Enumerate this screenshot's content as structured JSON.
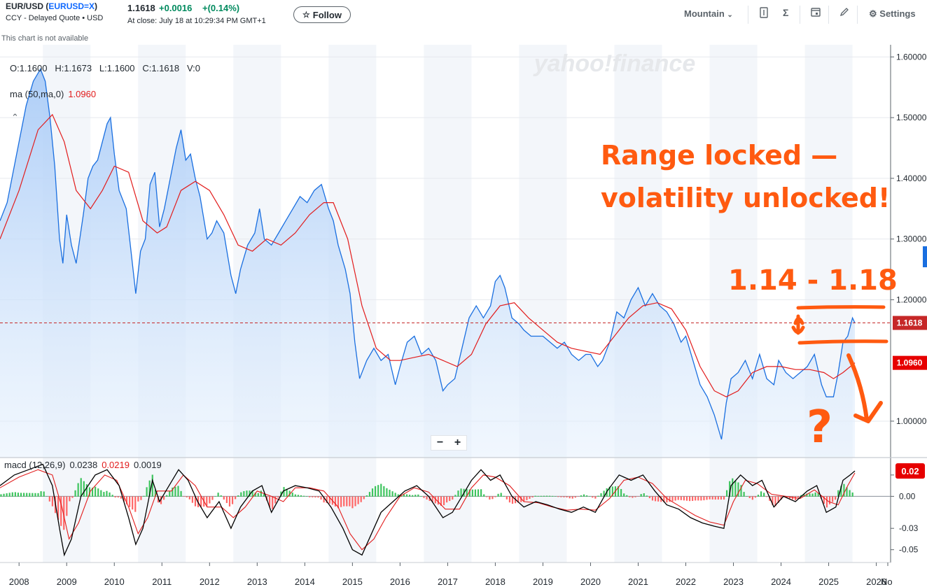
{
  "header": {
    "symbol_pair": "EUR/USD",
    "ticker": "EURUSD=X",
    "subtitle": "CCY - Delayed Quote • USD",
    "price": "1.1618",
    "change": "+0.0016",
    "change_pct": "+(0.14%)",
    "close_time": "At close: July 18 at 10:29:34 PM GMT+1",
    "follow_label": "Follow",
    "chart_type_label": "Mountain",
    "settings_label": "Settings",
    "not_available": "This chart is not available"
  },
  "icons": [
    "star-icon",
    "chevron-down-icon",
    "indicator-icon",
    "sigma-icon",
    "calendar-icon",
    "pencil-icon",
    "gear-icon"
  ],
  "colors": {
    "price_line": "#1a6fe0",
    "ma_line": "#e21c1c",
    "annotation": "#ff5a10",
    "macd_signal": "#e21c1c",
    "macd_line": "#000000",
    "hist_pos": "#3ec45e",
    "hist_neg": "#ff6666"
  },
  "chart_data": {
    "type": "area",
    "ohlc_legend": "O:1.1600   H:1.1673   L:1.1600   C:1.1618   V:0",
    "ma_label": "ma (50,ma,0)",
    "ma_value": "1.0960",
    "watermark": "yahoo!finance",
    "x_ticks": [
      "2008",
      "2009",
      "2010",
      "2011",
      "2012",
      "2013",
      "2014",
      "2015",
      "2016",
      "2017",
      "2018",
      "2019",
      "2020",
      "2021",
      "2022",
      "2023",
      "2024",
      "2025",
      "2026",
      "No"
    ],
    "y_ticks": [
      1.6,
      1.5,
      1.4,
      1.3,
      1.2,
      1.0
    ],
    "y_tick_labels": [
      "1.60000",
      "1.50000",
      "1.40000",
      "1.30000",
      "1.20000",
      "1.00000"
    ],
    "ylim": [
      0.94,
      1.62
    ],
    "x_range": [
      2007.6,
      2026.3
    ],
    "last_price_label": "1.1618",
    "last_ma_label": "1.0960",
    "price_series": [
      [
        2007.6,
        1.33
      ],
      [
        2007.75,
        1.36
      ],
      [
        2007.9,
        1.42
      ],
      [
        2008.0,
        1.46
      ],
      [
        2008.15,
        1.52
      ],
      [
        2008.3,
        1.56
      ],
      [
        2008.45,
        1.58
      ],
      [
        2008.55,
        1.56
      ],
      [
        2008.65,
        1.5
      ],
      [
        2008.75,
        1.42
      ],
      [
        2008.85,
        1.3
      ],
      [
        2008.92,
        1.26
      ],
      [
        2009.0,
        1.34
      ],
      [
        2009.1,
        1.29
      ],
      [
        2009.2,
        1.26
      ],
      [
        2009.35,
        1.34
      ],
      [
        2009.45,
        1.4
      ],
      [
        2009.55,
        1.42
      ],
      [
        2009.65,
        1.43
      ],
      [
        2009.75,
        1.46
      ],
      [
        2009.85,
        1.49
      ],
      [
        2009.92,
        1.5
      ],
      [
        2010.0,
        1.44
      ],
      [
        2010.1,
        1.38
      ],
      [
        2010.25,
        1.35
      ],
      [
        2010.35,
        1.28
      ],
      [
        2010.45,
        1.21
      ],
      [
        2010.55,
        1.28
      ],
      [
        2010.65,
        1.3
      ],
      [
        2010.75,
        1.39
      ],
      [
        2010.85,
        1.41
      ],
      [
        2010.95,
        1.32
      ],
      [
        2011.05,
        1.35
      ],
      [
        2011.2,
        1.41
      ],
      [
        2011.3,
        1.45
      ],
      [
        2011.4,
        1.48
      ],
      [
        2011.5,
        1.43
      ],
      [
        2011.6,
        1.44
      ],
      [
        2011.7,
        1.4
      ],
      [
        2011.8,
        1.37
      ],
      [
        2011.95,
        1.3
      ],
      [
        2012.05,
        1.31
      ],
      [
        2012.15,
        1.33
      ],
      [
        2012.3,
        1.31
      ],
      [
        2012.45,
        1.24
      ],
      [
        2012.55,
        1.21
      ],
      [
        2012.65,
        1.25
      ],
      [
        2012.8,
        1.29
      ],
      [
        2012.95,
        1.31
      ],
      [
        2013.05,
        1.35
      ],
      [
        2013.15,
        1.3
      ],
      [
        2013.3,
        1.29
      ],
      [
        2013.45,
        1.31
      ],
      [
        2013.6,
        1.33
      ],
      [
        2013.75,
        1.35
      ],
      [
        2013.9,
        1.37
      ],
      [
        2014.05,
        1.36
      ],
      [
        2014.2,
        1.38
      ],
      [
        2014.35,
        1.39
      ],
      [
        2014.5,
        1.35
      ],
      [
        2014.6,
        1.33
      ],
      [
        2014.7,
        1.29
      ],
      [
        2014.85,
        1.25
      ],
      [
        2014.95,
        1.21
      ],
      [
        2015.05,
        1.13
      ],
      [
        2015.15,
        1.07
      ],
      [
        2015.3,
        1.1
      ],
      [
        2015.45,
        1.12
      ],
      [
        2015.6,
        1.1
      ],
      [
        2015.75,
        1.11
      ],
      [
        2015.9,
        1.06
      ],
      [
        2016.0,
        1.09
      ],
      [
        2016.15,
        1.13
      ],
      [
        2016.3,
        1.14
      ],
      [
        2016.45,
        1.11
      ],
      [
        2016.6,
        1.12
      ],
      [
        2016.75,
        1.1
      ],
      [
        2016.9,
        1.05
      ],
      [
        2017.0,
        1.06
      ],
      [
        2017.15,
        1.07
      ],
      [
        2017.3,
        1.12
      ],
      [
        2017.45,
        1.17
      ],
      [
        2017.6,
        1.19
      ],
      [
        2017.75,
        1.17
      ],
      [
        2017.9,
        1.19
      ],
      [
        2018.0,
        1.23
      ],
      [
        2018.1,
        1.24
      ],
      [
        2018.2,
        1.22
      ],
      [
        2018.35,
        1.17
      ],
      [
        2018.5,
        1.16
      ],
      [
        2018.6,
        1.15
      ],
      [
        2018.75,
        1.14
      ],
      [
        2018.9,
        1.14
      ],
      [
        2019.0,
        1.14
      ],
      [
        2019.15,
        1.13
      ],
      [
        2019.3,
        1.12
      ],
      [
        2019.45,
        1.13
      ],
      [
        2019.6,
        1.11
      ],
      [
        2019.75,
        1.1
      ],
      [
        2019.9,
        1.11
      ],
      [
        2020.0,
        1.11
      ],
      [
        2020.15,
        1.09
      ],
      [
        2020.25,
        1.1
      ],
      [
        2020.4,
        1.13
      ],
      [
        2020.55,
        1.18
      ],
      [
        2020.7,
        1.17
      ],
      [
        2020.85,
        1.2
      ],
      [
        2021.0,
        1.22
      ],
      [
        2021.15,
        1.19
      ],
      [
        2021.3,
        1.21
      ],
      [
        2021.45,
        1.19
      ],
      [
        2021.6,
        1.18
      ],
      [
        2021.75,
        1.16
      ],
      [
        2021.9,
        1.13
      ],
      [
        2022.0,
        1.14
      ],
      [
        2022.15,
        1.1
      ],
      [
        2022.3,
        1.06
      ],
      [
        2022.45,
        1.04
      ],
      [
        2022.6,
        1.01
      ],
      [
        2022.75,
        0.97
      ],
      [
        2022.85,
        1.03
      ],
      [
        2022.95,
        1.07
      ],
      [
        2023.1,
        1.08
      ],
      [
        2023.25,
        1.1
      ],
      [
        2023.4,
        1.07
      ],
      [
        2023.55,
        1.11
      ],
      [
        2023.7,
        1.07
      ],
      [
        2023.85,
        1.06
      ],
      [
        2023.95,
        1.1
      ],
      [
        2024.1,
        1.08
      ],
      [
        2024.25,
        1.07
      ],
      [
        2024.4,
        1.08
      ],
      [
        2024.55,
        1.09
      ],
      [
        2024.7,
        1.11
      ],
      [
        2024.85,
        1.06
      ],
      [
        2024.95,
        1.04
      ],
      [
        2025.1,
        1.04
      ],
      [
        2025.2,
        1.08
      ],
      [
        2025.3,
        1.13
      ],
      [
        2025.4,
        1.14
      ],
      [
        2025.5,
        1.17
      ],
      [
        2025.55,
        1.1618
      ]
    ],
    "ma_series": [
      [
        2007.6,
        1.3
      ],
      [
        2008.0,
        1.38
      ],
      [
        2008.4,
        1.48
      ],
      [
        2008.7,
        1.505
      ],
      [
        2008.95,
        1.46
      ],
      [
        2009.2,
        1.38
      ],
      [
        2009.5,
        1.35
      ],
      [
        2009.75,
        1.38
      ],
      [
        2010.0,
        1.42
      ],
      [
        2010.3,
        1.41
      ],
      [
        2010.6,
        1.33
      ],
      [
        2010.9,
        1.31
      ],
      [
        2011.1,
        1.32
      ],
      [
        2011.4,
        1.38
      ],
      [
        2011.7,
        1.395
      ],
      [
        2012.0,
        1.38
      ],
      [
        2012.3,
        1.34
      ],
      [
        2012.6,
        1.29
      ],
      [
        2012.9,
        1.28
      ],
      [
        2013.2,
        1.3
      ],
      [
        2013.5,
        1.29
      ],
      [
        2013.8,
        1.31
      ],
      [
        2014.1,
        1.34
      ],
      [
        2014.4,
        1.36
      ],
      [
        2014.6,
        1.36
      ],
      [
        2014.9,
        1.3
      ],
      [
        2015.2,
        1.19
      ],
      [
        2015.5,
        1.12
      ],
      [
        2015.8,
        1.1
      ],
      [
        2016.0,
        1.1
      ],
      [
        2016.3,
        1.105
      ],
      [
        2016.6,
        1.11
      ],
      [
        2016.9,
        1.1
      ],
      [
        2017.2,
        1.09
      ],
      [
        2017.5,
        1.11
      ],
      [
        2017.8,
        1.16
      ],
      [
        2018.1,
        1.19
      ],
      [
        2018.4,
        1.195
      ],
      [
        2018.7,
        1.17
      ],
      [
        2019.0,
        1.15
      ],
      [
        2019.3,
        1.13
      ],
      [
        2019.6,
        1.12
      ],
      [
        2019.9,
        1.115
      ],
      [
        2020.2,
        1.11
      ],
      [
        2020.5,
        1.14
      ],
      [
        2020.8,
        1.17
      ],
      [
        2021.1,
        1.19
      ],
      [
        2021.4,
        1.195
      ],
      [
        2021.7,
        1.185
      ],
      [
        2022.0,
        1.15
      ],
      [
        2022.3,
        1.09
      ],
      [
        2022.6,
        1.05
      ],
      [
        2022.85,
        1.04
      ],
      [
        2023.1,
        1.05
      ],
      [
        2023.4,
        1.08
      ],
      [
        2023.7,
        1.09
      ],
      [
        2024.0,
        1.09
      ],
      [
        2024.3,
        1.085
      ],
      [
        2024.6,
        1.085
      ],
      [
        2024.9,
        1.08
      ],
      [
        2025.1,
        1.07
      ],
      [
        2025.3,
        1.08
      ],
      [
        2025.55,
        1.096
      ]
    ],
    "macd_legend": {
      "label": "macd (12,26,9)",
      "macd": "0.0238",
      "signal": "0.0219",
      "hist": "0.0019"
    },
    "macd_y_ticks": [
      0.02,
      0.0,
      -0.03,
      -0.05
    ],
    "macd_y_tick_labels": [
      "0.02",
      "0.00",
      "-0.03",
      "-0.05"
    ],
    "macd_ylim": [
      -0.062,
      0.035
    ],
    "macd_last_label": "0.02",
    "macd_series": [
      [
        2007.6,
        0.01
      ],
      [
        2007.9,
        0.02
      ],
      [
        2008.2,
        0.025
      ],
      [
        2008.5,
        0.03
      ],
      [
        2008.7,
        0.01
      ],
      [
        2008.85,
        -0.03
      ],
      [
        2008.95,
        -0.055
      ],
      [
        2009.1,
        -0.04
      ],
      [
        2009.3,
        0.0
      ],
      [
        2009.6,
        0.02
      ],
      [
        2009.85,
        0.025
      ],
      [
        2010.1,
        0.01
      ],
      [
        2010.3,
        -0.02
      ],
      [
        2010.45,
        -0.045
      ],
      [
        2010.6,
        -0.03
      ],
      [
        2010.8,
        0.015
      ],
      [
        2010.95,
        -0.005
      ],
      [
        2011.15,
        0.01
      ],
      [
        2011.35,
        0.025
      ],
      [
        2011.55,
        0.015
      ],
      [
        2011.75,
        -0.005
      ],
      [
        2011.95,
        -0.02
      ],
      [
        2012.2,
        -0.005
      ],
      [
        2012.45,
        -0.03
      ],
      [
        2012.65,
        -0.01
      ],
      [
        2012.9,
        0.005
      ],
      [
        2013.1,
        0.01
      ],
      [
        2013.3,
        -0.015
      ],
      [
        2013.55,
        0.005
      ],
      [
        2013.8,
        0.01
      ],
      [
        2014.05,
        0.008
      ],
      [
        2014.3,
        0.005
      ],
      [
        2014.55,
        -0.01
      ],
      [
        2014.8,
        -0.03
      ],
      [
        2015.0,
        -0.05
      ],
      [
        2015.2,
        -0.055
      ],
      [
        2015.4,
        -0.035
      ],
      [
        2015.6,
        -0.015
      ],
      [
        2015.85,
        -0.005
      ],
      [
        2016.1,
        0.005
      ],
      [
        2016.35,
        0.01
      ],
      [
        2016.6,
        0.0
      ],
      [
        2016.9,
        -0.02
      ],
      [
        2017.1,
        -0.015
      ],
      [
        2017.3,
        0.0
      ],
      [
        2017.5,
        0.015
      ],
      [
        2017.7,
        0.025
      ],
      [
        2017.9,
        0.015
      ],
      [
        2018.1,
        0.02
      ],
      [
        2018.35,
        0.0
      ],
      [
        2018.6,
        -0.01
      ],
      [
        2018.85,
        -0.005
      ],
      [
        2019.1,
        -0.008
      ],
      [
        2019.35,
        -0.012
      ],
      [
        2019.6,
        -0.015
      ],
      [
        2019.85,
        -0.01
      ],
      [
        2020.1,
        -0.015
      ],
      [
        2020.35,
        0.005
      ],
      [
        2020.6,
        0.02
      ],
      [
        2020.85,
        0.015
      ],
      [
        2021.1,
        0.02
      ],
      [
        2021.35,
        0.005
      ],
      [
        2021.6,
        -0.008
      ],
      [
        2021.85,
        -0.012
      ],
      [
        2022.1,
        -0.02
      ],
      [
        2022.35,
        -0.025
      ],
      [
        2022.6,
        -0.028
      ],
      [
        2022.8,
        -0.03
      ],
      [
        2022.95,
        0.01
      ],
      [
        2023.15,
        0.02
      ],
      [
        2023.4,
        0.01
      ],
      [
        2023.6,
        0.015
      ],
      [
        2023.85,
        -0.01
      ],
      [
        2024.05,
        0.0
      ],
      [
        2024.3,
        -0.005
      ],
      [
        2024.55,
        0.005
      ],
      [
        2024.75,
        0.01
      ],
      [
        2024.95,
        -0.015
      ],
      [
        2025.15,
        -0.01
      ],
      [
        2025.3,
        0.015
      ],
      [
        2025.45,
        0.02
      ],
      [
        2025.55,
        0.0238
      ]
    ],
    "signal_series": [
      [
        2007.6,
        0.008
      ],
      [
        2008.0,
        0.018
      ],
      [
        2008.4,
        0.025
      ],
      [
        2008.7,
        0.02
      ],
      [
        2008.9,
        -0.01
      ],
      [
        2009.05,
        -0.04
      ],
      [
        2009.25,
        -0.025
      ],
      [
        2009.5,
        0.005
      ],
      [
        2009.8,
        0.02
      ],
      [
        2010.05,
        0.015
      ],
      [
        2010.3,
        -0.01
      ],
      [
        2010.5,
        -0.035
      ],
      [
        2010.7,
        -0.02
      ],
      [
        2010.9,
        0.005
      ],
      [
        2011.2,
        0.005
      ],
      [
        2011.45,
        0.02
      ],
      [
        2011.7,
        0.01
      ],
      [
        2011.95,
        -0.01
      ],
      [
        2012.25,
        -0.01
      ],
      [
        2012.5,
        -0.02
      ],
      [
        2012.75,
        -0.01
      ],
      [
        2013.0,
        0.005
      ],
      [
        2013.3,
        0.0
      ],
      [
        2013.55,
        -0.005
      ],
      [
        2013.8,
        0.008
      ],
      [
        2014.1,
        0.008
      ],
      [
        2014.4,
        0.005
      ],
      [
        2014.7,
        -0.01
      ],
      [
        2014.95,
        -0.035
      ],
      [
        2015.2,
        -0.05
      ],
      [
        2015.45,
        -0.04
      ],
      [
        2015.7,
        -0.02
      ],
      [
        2016.0,
        0.0
      ],
      [
        2016.3,
        0.008
      ],
      [
        2016.6,
        0.004
      ],
      [
        2016.95,
        -0.012
      ],
      [
        2017.25,
        -0.012
      ],
      [
        2017.5,
        0.008
      ],
      [
        2017.75,
        0.02
      ],
      [
        2018.0,
        0.018
      ],
      [
        2018.3,
        0.01
      ],
      [
        2018.6,
        -0.005
      ],
      [
        2018.9,
        -0.006
      ],
      [
        2019.2,
        -0.01
      ],
      [
        2019.5,
        -0.013
      ],
      [
        2019.8,
        -0.012
      ],
      [
        2020.1,
        -0.013
      ],
      [
        2020.4,
        -0.002
      ],
      [
        2020.7,
        0.015
      ],
      [
        2021.0,
        0.018
      ],
      [
        2021.3,
        0.012
      ],
      [
        2021.6,
        -0.002
      ],
      [
        2021.9,
        -0.01
      ],
      [
        2022.2,
        -0.018
      ],
      [
        2022.5,
        -0.024
      ],
      [
        2022.8,
        -0.027
      ],
      [
        2023.0,
        -0.005
      ],
      [
        2023.25,
        0.015
      ],
      [
        2023.5,
        0.012
      ],
      [
        2023.8,
        0.002
      ],
      [
        2024.1,
        0.0
      ],
      [
        2024.4,
        -0.002
      ],
      [
        2024.7,
        0.006
      ],
      [
        2025.0,
        -0.005
      ],
      [
        2025.2,
        -0.008
      ],
      [
        2025.4,
        0.01
      ],
      [
        2025.55,
        0.0219
      ]
    ]
  },
  "annotations": {
    "headline_line1": "Range locked —",
    "headline_line2": "volatility unlocked!",
    "range_label": "1.14 - 1.18",
    "question_mark": "?"
  }
}
